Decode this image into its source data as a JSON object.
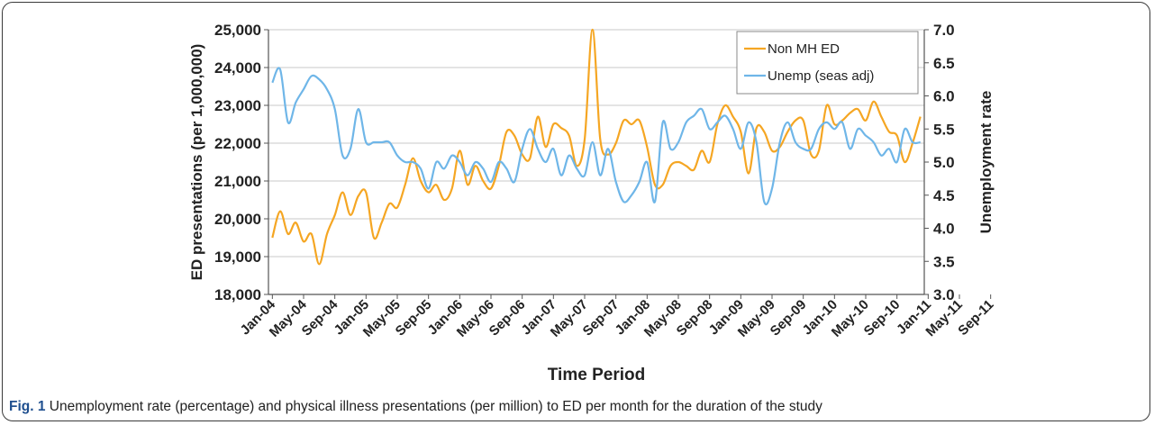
{
  "caption": {
    "label": "Fig. 1",
    "text": "Unemployment rate (percentage) and physical illness presentations (per million) to ED per month for the duration of the study"
  },
  "colors": {
    "ed": "#f5a623",
    "unemp": "#6fb6e8",
    "axis": "#555555"
  },
  "chart_data": {
    "type": "line",
    "xlabel": "Time Period",
    "y_left_label": "ED presentations  (per 1,000,000)",
    "y_right_label": "Unemployment rate",
    "y_left_lim": [
      18000,
      25000
    ],
    "y_left_ticks": [
      "18,000",
      "19,000",
      "20,000",
      "21,000",
      "22,000",
      "23,000",
      "24,000",
      "25,000"
    ],
    "y_left_tick_values": [
      18000,
      19000,
      20000,
      21000,
      22000,
      23000,
      24000,
      25000
    ],
    "y_right_lim": [
      3.0,
      7.0
    ],
    "y_right_ticks": [
      "3.0",
      "3.5",
      "4.0",
      "4.5",
      "5.0",
      "5.5",
      "6.0",
      "6.5",
      "7.0"
    ],
    "y_right_tick_values": [
      3.0,
      3.5,
      4.0,
      4.5,
      5.0,
      5.5,
      6.0,
      6.5,
      7.0
    ],
    "x_tick_labels": [
      "Jan-04",
      "May-04",
      "Sep-04",
      "Jan-05",
      "May-05",
      "Sep-05",
      "Jan-06",
      "May-06",
      "Sep-06",
      "Jan-07",
      "May-07",
      "Sep-07",
      "Jan-08",
      "May-08",
      "Sep-08",
      "Jan-09",
      "May-09",
      "Sep-09",
      "Jan-10",
      "May-10",
      "Sep-10",
      "Jan-11",
      "May-11",
      "Sep-11"
    ],
    "grid": "horizontal",
    "legend_position": "top-right",
    "series": [
      {
        "name": "Non MH ED",
        "axis": "left",
        "values": [
          19500,
          20200,
          19600,
          19900,
          19400,
          19600,
          18800,
          19600,
          20100,
          20700,
          20100,
          20600,
          20700,
          19500,
          19900,
          20400,
          20300,
          20900,
          21600,
          21000,
          20700,
          20900,
          20500,
          20800,
          21800,
          20900,
          21400,
          21000,
          20800,
          21400,
          22300,
          22200,
          21700,
          21600,
          22700,
          21900,
          22500,
          22400,
          22200,
          21400,
          22100,
          25000,
          22100,
          21700,
          22000,
          22600,
          22500,
          22600,
          21900,
          20900,
          20900,
          21400,
          21500,
          21400,
          21300,
          21800,
          21500,
          22500,
          23000,
          22700,
          22300,
          21200,
          22400,
          22300,
          21800,
          21900,
          22300,
          22600,
          22600,
          21700,
          21800,
          23000,
          22500,
          22600,
          22800,
          22900,
          22600,
          23100,
          22700,
          22300,
          22200,
          21500,
          22000,
          22700
        ]
      },
      {
        "name": "Unemp (seas adj)",
        "axis": "right",
        "values": [
          6.2,
          6.4,
          5.6,
          5.9,
          6.1,
          6.3,
          6.25,
          6.1,
          5.8,
          5.1,
          5.2,
          5.8,
          5.3,
          5.3,
          5.3,
          5.3,
          5.1,
          5.0,
          5.0,
          4.9,
          4.6,
          5.0,
          4.9,
          5.1,
          5.0,
          4.8,
          5.0,
          4.9,
          4.7,
          5.0,
          4.9,
          4.7,
          5.2,
          5.5,
          5.2,
          5.0,
          5.2,
          4.8,
          5.1,
          4.9,
          4.8,
          5.3,
          4.8,
          5.2,
          4.7,
          4.4,
          4.5,
          4.7,
          5.0,
          4.4,
          5.6,
          5.2,
          5.3,
          5.6,
          5.7,
          5.8,
          5.5,
          5.6,
          5.7,
          5.5,
          5.2,
          5.6,
          5.3,
          4.4,
          4.6,
          5.3,
          5.6,
          5.3,
          5.2,
          5.2,
          5.5,
          5.6,
          5.5,
          5.6,
          5.2,
          5.5,
          5.4,
          5.3,
          5.1,
          5.2,
          5.0,
          5.5,
          5.3,
          5.3
        ]
      }
    ]
  }
}
